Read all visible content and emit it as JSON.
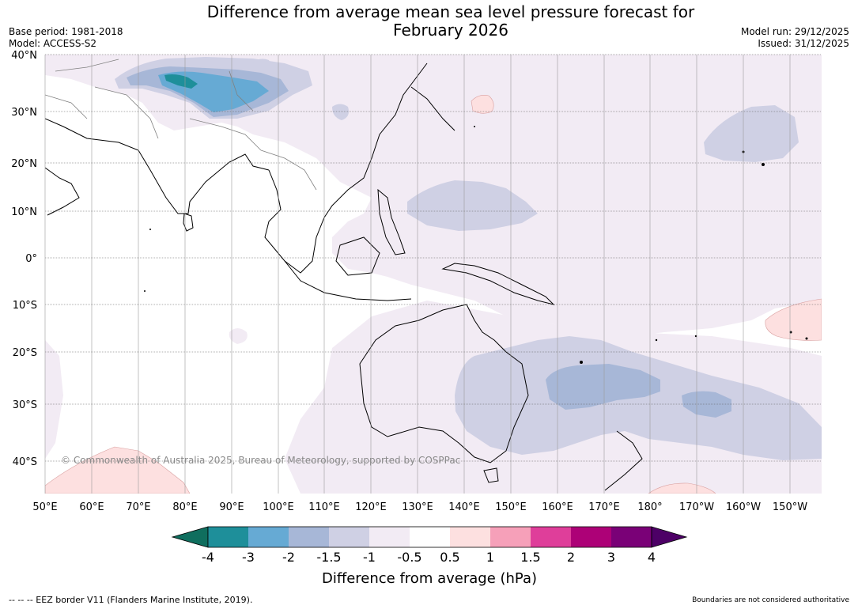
{
  "title_line1": "Difference from average mean sea level pressure forecast for",
  "title_line2": "February 2026",
  "base_period": "Base period: 1981-2018",
  "model": "Model: ACCESS-S2",
  "model_run": "Model run: 29/12/2025",
  "issued": "Issued: 31/12/2025",
  "copyright": "© Commonwealth of Australia 2025, Bureau of Meteorology, supported by COSPPac",
  "footer_left": "--  --  -- EEZ border V11 (Flanders Marine Institute, 2019).",
  "footer_right": "Boundaries are not considered authoritative",
  "lat_labels": [
    "40°N",
    "30°N",
    "20°N",
    "10°N",
    "0°",
    "10°S",
    "20°S",
    "30°S",
    "40°S"
  ],
  "lon_labels": [
    "50°E",
    "60°E",
    "70°E",
    "80°E",
    "90°E",
    "100°E",
    "110°E",
    "120°E",
    "130°E",
    "140°E",
    "150°E",
    "160°E",
    "170°E",
    "180°",
    "170°W",
    "160°W",
    "150°W"
  ],
  "colorbar": {
    "title": "Difference from average (hPa)",
    "tick_labels": [
      "-4",
      "-3",
      "-2",
      "-1.5",
      "-1",
      "-0.5",
      "0.5",
      "1",
      "1.5",
      "2",
      "3",
      "4"
    ],
    "colors": [
      "#0f6e5e",
      "#1e8f9a",
      "#66aad4",
      "#a7b7d7",
      "#cfd0e4",
      "#f2ebf4",
      "#ffffff",
      "#fde0e0",
      "#f6a0b9",
      "#df3e9a",
      "#ad0177",
      "#7a0177",
      "#4d0066"
    ]
  }
}
